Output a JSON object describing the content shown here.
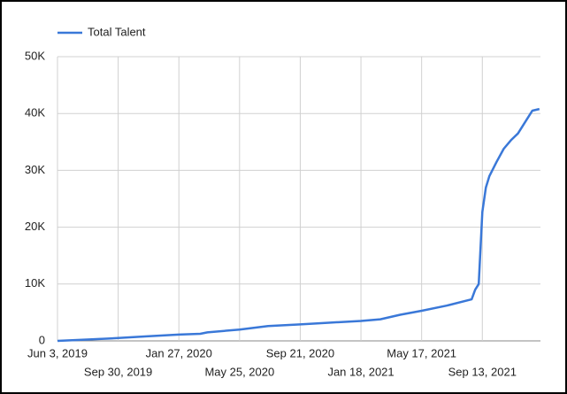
{
  "chart_data": {
    "type": "line",
    "series": [
      {
        "name": "Total Talent",
        "color": "#3a78d8",
        "x": [
          "2019-06-03",
          "2019-08-05",
          "2019-09-30",
          "2019-11-25",
          "2020-01-27",
          "2020-03-09",
          "2020-03-23",
          "2020-05-25",
          "2020-07-20",
          "2020-09-21",
          "2020-11-16",
          "2021-01-18",
          "2021-02-25",
          "2021-04-05",
          "2021-05-17",
          "2021-07-05",
          "2021-08-23",
          "2021-08-30",
          "2021-09-06",
          "2021-09-13",
          "2021-09-20",
          "2021-09-27",
          "2021-10-11",
          "2021-10-25",
          "2021-11-08",
          "2021-11-22",
          "2021-12-06",
          "2021-12-20",
          "2022-01-03"
        ],
        "values": [
          0,
          250,
          500,
          800,
          1100,
          1250,
          1500,
          2000,
          2600,
          2900,
          3200,
          3500,
          3800,
          4600,
          5300,
          6200,
          7300,
          9000,
          10000,
          22700,
          27000,
          29000,
          31500,
          33800,
          35300,
          36500,
          38500,
          40500,
          40800
        ]
      }
    ],
    "xlim": [
      "2019-06-03",
      "2022-01-05"
    ],
    "xticks": [
      {
        "value": "2019-06-03",
        "label": "Jun 3, 2019"
      },
      {
        "value": "2019-09-30",
        "label": "Sep 30, 2019"
      },
      {
        "value": "2020-01-27",
        "label": "Jan 27, 2020"
      },
      {
        "value": "2020-05-25",
        "label": "May 25, 2020"
      },
      {
        "value": "2020-09-21",
        "label": "Sep 21, 2020"
      },
      {
        "value": "2021-01-18",
        "label": "Jan 18, 2021"
      },
      {
        "value": "2021-05-17",
        "label": "May 17, 2021"
      },
      {
        "value": "2021-09-13",
        "label": "Sep 13, 2021"
      }
    ],
    "ylim": [
      0,
      50000
    ],
    "yticks": [
      0,
      {
        "value": 10000,
        "label": "10K"
      },
      {
        "value": 20000,
        "label": "20K"
      },
      {
        "value": 30000,
        "label": "30K"
      },
      {
        "value": 40000,
        "label": "40K"
      },
      {
        "value": 50000,
        "label": "50K"
      }
    ],
    "grid": true
  }
}
